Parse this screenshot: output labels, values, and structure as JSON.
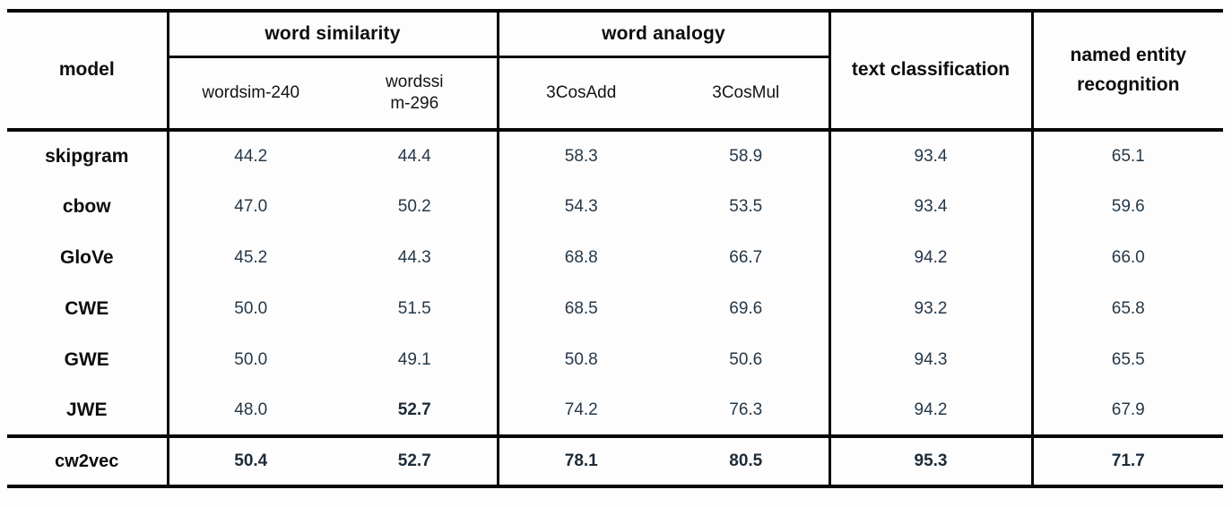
{
  "table": {
    "corner_header": "model",
    "groups": [
      {
        "label": "word similarity"
      },
      {
        "label": "word analogy"
      }
    ],
    "sub_headers": {
      "wordsim_240": "wordsim-240",
      "wordssim_296_line1": "wordssi",
      "wordssim_296_line2": "m-296",
      "cosadd": "3CosAdd",
      "cosmul": "3CosMul"
    },
    "text_classification_header": "text classification",
    "ner_header": "named entity recognition",
    "rows": [
      {
        "model": "skipgram",
        "values": [
          "44.2",
          "44.4",
          "58.3",
          "58.9",
          "93.4",
          "65.1"
        ]
      },
      {
        "model": "cbow",
        "values": [
          "47.0",
          "50.2",
          "54.3",
          "53.5",
          "93.4",
          "59.6"
        ]
      },
      {
        "model": "GloVe",
        "values": [
          "45.2",
          "44.3",
          "68.8",
          "66.7",
          "94.2",
          "66.0"
        ]
      },
      {
        "model": "CWE",
        "values": [
          "50.0",
          "51.5",
          "68.5",
          "69.6",
          "93.2",
          "65.8"
        ]
      },
      {
        "model": "GWE",
        "values": [
          "50.0",
          "49.1",
          "50.8",
          "50.6",
          "94.3",
          "65.5"
        ]
      },
      {
        "model": "JWE",
        "values": [
          "48.0",
          "52.7",
          "74.2",
          "76.3",
          "94.2",
          "67.9"
        ]
      }
    ],
    "footer": {
      "model": "cw2vec",
      "values": [
        "50.4",
        "52.7",
        "78.1",
        "80.5",
        "95.3",
        "71.7"
      ]
    },
    "colors": {
      "border": "#060606",
      "header_text": "#0d0d0d",
      "value_text": "#253849",
      "background": "#fdfdfd"
    }
  }
}
